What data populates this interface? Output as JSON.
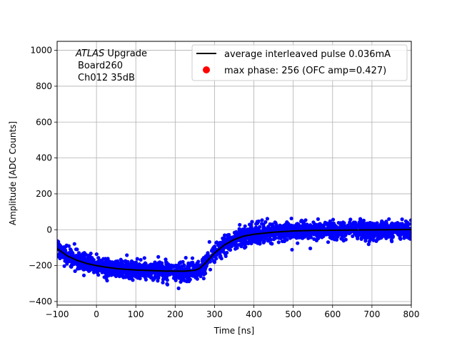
{
  "chart_data": {
    "type": "scatter",
    "xlabel": "Time [ns]",
    "ylabel": "Amplitude [ADC Counts]",
    "xlim": [
      -100,
      800
    ],
    "ylim": [
      -420,
      1050
    ],
    "xticks": [
      -100,
      0,
      100,
      200,
      300,
      400,
      500,
      600,
      700,
      800
    ],
    "yticks": [
      -400,
      -200,
      0,
      200,
      400,
      600,
      800,
      1000
    ],
    "grid": true,
    "legend_placement": "top-right",
    "annotation": {
      "italic": "ATLAS",
      "rest": " Upgrade",
      "line2": "Board260",
      "line3": "Ch012 35dB"
    },
    "series": [
      {
        "name": "average interleaved pulse 0.036mA",
        "kind": "line",
        "color": "#000000",
        "x": [
          -100,
          -75,
          -50,
          -25,
          0,
          25,
          50,
          75,
          100,
          125,
          150,
          175,
          200,
          225,
          250,
          260,
          275,
          300,
          325,
          350,
          375,
          400,
          450,
          500,
          550,
          600,
          650,
          700,
          750,
          800
        ],
        "y": [
          -105,
          -145,
          -170,
          -188,
          -200,
          -209,
          -216,
          -221,
          -224,
          -226,
          -228,
          -230,
          -231,
          -231,
          -226,
          -218,
          -190,
          -130,
          -85,
          -55,
          -35,
          -25,
          -14,
          -7,
          -4,
          -3,
          -2,
          -1,
          0,
          1
        ]
      },
      {
        "name": "max phase: 256 (OFC amp=0.427)",
        "kind": "point",
        "color": "#ff0000"
      },
      {
        "name": "",
        "kind": "scatter",
        "color": "#0000ff",
        "follows": "average interleaved pulse 0.036mA",
        "spread": 45,
        "max_deviation": 140
      }
    ]
  }
}
